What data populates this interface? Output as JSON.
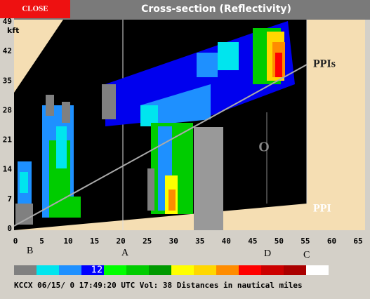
{
  "close_button": "CLOSE",
  "title": "Cross-section (Reflectivity)",
  "y_axis": {
    "unit": "kft",
    "ticks": [
      0,
      7,
      14,
      21,
      28,
      35,
      42,
      49
    ]
  },
  "x_axis": {
    "ticks": [
      0,
      5,
      10,
      15,
      20,
      25,
      30,
      35,
      40,
      45,
      50,
      55,
      60,
      65
    ]
  },
  "annotations": {
    "ppis": "PPIs",
    "ppi": "PPI",
    "o": "O",
    "b": "B",
    "a": "A",
    "d": "D",
    "c": "C"
  },
  "color_bar": {
    "label": "12"
  },
  "status": "KCCX 06/15/ 0 17:49:20 UTC Vol: 38 Distances in nautical miles"
}
